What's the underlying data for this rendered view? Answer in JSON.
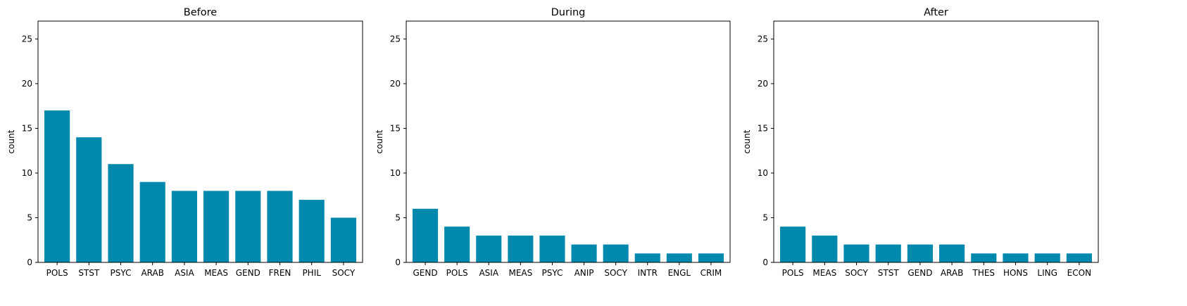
{
  "chart_data": [
    {
      "type": "bar",
      "title": "Before",
      "xlabel": "",
      "ylabel": "count",
      "ylim": [
        0,
        27
      ],
      "yticks": [
        0,
        5,
        10,
        15,
        20,
        25
      ],
      "grid": false,
      "bar_color": "#0088ad",
      "categories": [
        "POLS",
        "STST",
        "PSYC",
        "ARAB",
        "ASIA",
        "MEAS",
        "GEND",
        "FREN",
        "PHIL",
        "SOCY"
      ],
      "values": [
        17,
        14,
        11,
        9,
        8,
        8,
        8,
        8,
        7,
        5
      ]
    },
    {
      "type": "bar",
      "title": "During",
      "xlabel": "",
      "ylabel": "count",
      "ylim": [
        0,
        27
      ],
      "yticks": [
        0,
        5,
        10,
        15,
        20,
        25
      ],
      "grid": false,
      "bar_color": "#0088ad",
      "categories": [
        "GEND",
        "POLS",
        "ASIA",
        "MEAS",
        "PSYC",
        "ANIP",
        "SOCY",
        "INTR",
        "ENGL",
        "CRIM"
      ],
      "values": [
        6,
        4,
        3,
        3,
        3,
        2,
        2,
        1,
        1,
        1
      ]
    },
    {
      "type": "bar",
      "title": "After",
      "xlabel": "",
      "ylabel": "count",
      "ylim": [
        0,
        27
      ],
      "yticks": [
        0,
        5,
        10,
        15,
        20,
        25
      ],
      "grid": false,
      "bar_color": "#0088ad",
      "categories": [
        "POLS",
        "MEAS",
        "SOCY",
        "STST",
        "GEND",
        "ARAB",
        "THES",
        "HONS",
        "LING",
        "ECON"
      ],
      "values": [
        4,
        3,
        2,
        2,
        2,
        2,
        1,
        1,
        1,
        1
      ]
    }
  ]
}
